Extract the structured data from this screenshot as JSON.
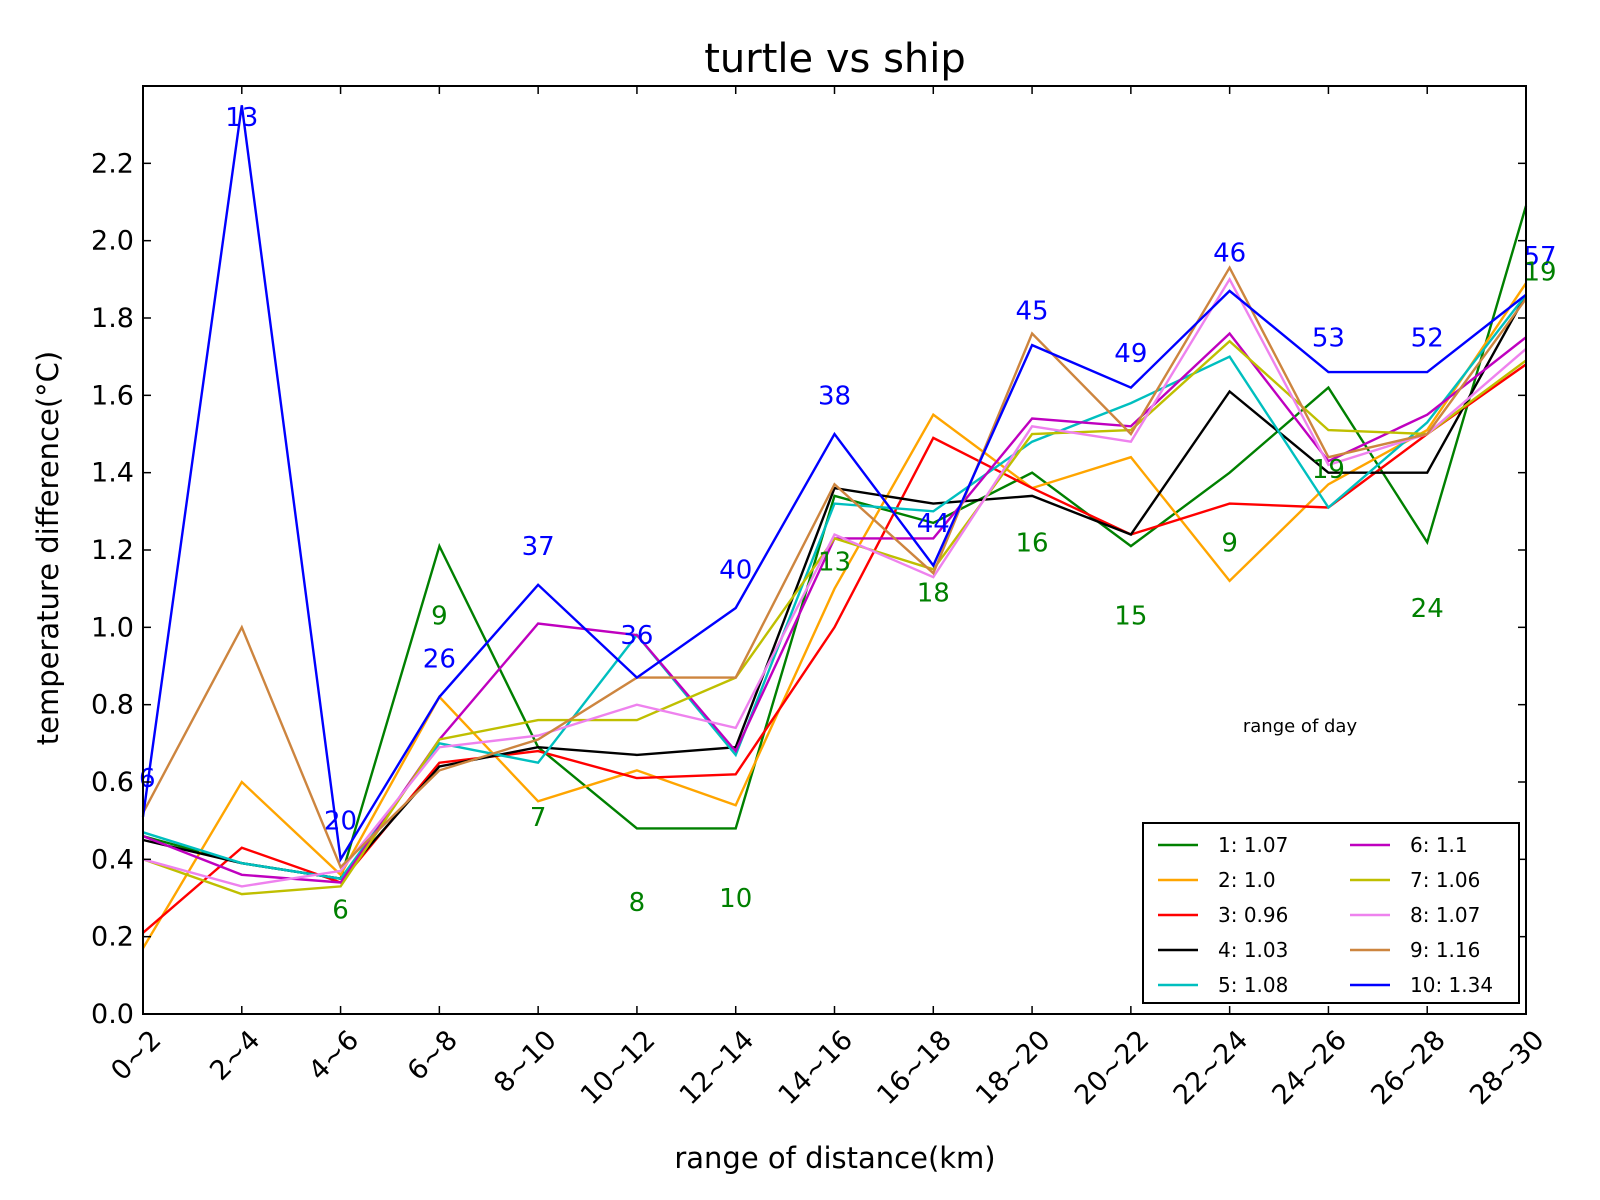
{
  "chart_data": {
    "type": "line",
    "title": "turtle vs ship",
    "xlabel": "range of distance(km)",
    "ylabel": "temperature difference(°C)",
    "categories": [
      "0~2",
      "2~4",
      "4~6",
      "6~8",
      "8~10",
      "10~12",
      "12~14",
      "14~16",
      "16~18",
      "18~20",
      "20~22",
      "22~24",
      "24~26",
      "26~28",
      "28~30"
    ],
    "ylim": [
      0,
      2.4
    ],
    "yticks": [
      0.0,
      0.2,
      0.4,
      0.6,
      0.8,
      1.0,
      1.2,
      1.4,
      1.6,
      1.8,
      2.0,
      2.2
    ],
    "ytick_labels": [
      "0.0",
      "0.2",
      "0.4",
      "0.6",
      "0.8",
      "1.0",
      "1.2",
      "1.4",
      "1.6",
      "1.8",
      "2.0",
      "2.2"
    ],
    "grid": false,
    "legend": {
      "title": "range of day",
      "title_position": "middle-right",
      "position": "lower-right",
      "columns": 2
    },
    "series": [
      {
        "name": "1: 1.07",
        "color": "#008000",
        "values": [
          0.46,
          0.39,
          0.35,
          1.21,
          0.69,
          0.48,
          0.48,
          1.34,
          1.27,
          1.4,
          1.21,
          1.4,
          1.62,
          1.22,
          2.09
        ]
      },
      {
        "name": "2: 1.0",
        "color": "#FFA500",
        "values": [
          0.17,
          0.6,
          0.36,
          0.82,
          0.55,
          0.63,
          0.54,
          1.1,
          1.55,
          1.36,
          1.44,
          1.12,
          1.37,
          1.51,
          1.89
        ]
      },
      {
        "name": "3: 0.96",
        "color": "#FF0000",
        "values": [
          0.21,
          0.43,
          0.34,
          0.65,
          0.68,
          0.61,
          0.62,
          1.0,
          1.49,
          1.36,
          1.24,
          1.32,
          1.31,
          1.5,
          1.68
        ]
      },
      {
        "name": "4: 1.03",
        "color": "#000000",
        "values": [
          0.45,
          0.39,
          0.35,
          0.64,
          0.69,
          0.67,
          0.69,
          1.36,
          1.32,
          1.34,
          1.24,
          1.61,
          1.4,
          1.4,
          1.86
        ]
      },
      {
        "name": "5: 1.08",
        "color": "#00BFBF",
        "values": [
          0.47,
          0.39,
          0.35,
          0.7,
          0.65,
          0.98,
          0.67,
          1.32,
          1.3,
          1.48,
          1.58,
          1.7,
          1.31,
          1.53,
          1.86
        ]
      },
      {
        "name": "6: 1.1",
        "color": "#BF00BF",
        "values": [
          0.46,
          0.36,
          0.34,
          0.71,
          1.01,
          0.98,
          0.68,
          1.23,
          1.23,
          1.54,
          1.52,
          1.76,
          1.43,
          1.55,
          1.75
        ]
      },
      {
        "name": "7: 1.06",
        "color": "#BFBF00",
        "values": [
          0.4,
          0.31,
          0.33,
          0.71,
          0.76,
          0.76,
          0.87,
          1.23,
          1.15,
          1.5,
          1.51,
          1.74,
          1.51,
          1.5,
          1.69
        ]
      },
      {
        "name": "8: 1.07",
        "color": "#EE82EE",
        "values": [
          0.4,
          0.33,
          0.37,
          0.69,
          0.72,
          0.8,
          0.74,
          1.24,
          1.13,
          1.52,
          1.48,
          1.9,
          1.42,
          1.5,
          1.72
        ]
      },
      {
        "name": "9: 1.16",
        "color": "#CD853F",
        "values": [
          0.52,
          1.0,
          0.38,
          0.63,
          0.71,
          0.87,
          0.87,
          1.37,
          1.14,
          1.76,
          1.5,
          1.93,
          1.44,
          1.5,
          1.85
        ]
      },
      {
        "name": "10: 1.34",
        "color": "#0000FF",
        "values": [
          0.51,
          2.35,
          0.4,
          0.82,
          1.11,
          0.87,
          1.05,
          1.5,
          1.16,
          1.73,
          1.62,
          1.87,
          1.66,
          1.66,
          1.86
        ]
      }
    ],
    "annotations": [
      {
        "text": "6",
        "x": "0~2",
        "y": 0.61,
        "color": "#0000FF"
      },
      {
        "text": "13",
        "x": "2~4",
        "y": 2.32,
        "color": "#0000FF"
      },
      {
        "text": "20",
        "x": "4~6",
        "y": 0.5,
        "color": "#0000FF"
      },
      {
        "text": "6",
        "x": "4~6",
        "y": 0.27,
        "color": "#008000"
      },
      {
        "text": "9",
        "x": "6~8",
        "y": 1.03,
        "color": "#008000"
      },
      {
        "text": "26",
        "x": "6~8",
        "y": 0.92,
        "color": "#0000FF"
      },
      {
        "text": "37",
        "x": "8~10",
        "y": 1.21,
        "color": "#0000FF"
      },
      {
        "text": "7",
        "x": "8~10",
        "y": 0.51,
        "color": "#008000"
      },
      {
        "text": "36",
        "x": "10~12",
        "y": 0.98,
        "color": "#0000FF"
      },
      {
        "text": "8",
        "x": "10~12",
        "y": 0.29,
        "color": "#008000"
      },
      {
        "text": "40",
        "x": "12~14",
        "y": 1.15,
        "color": "#0000FF"
      },
      {
        "text": "10",
        "x": "12~14",
        "y": 0.3,
        "color": "#008000"
      },
      {
        "text": "38",
        "x": "14~16",
        "y": 1.6,
        "color": "#0000FF"
      },
      {
        "text": "13",
        "x": "14~16",
        "y": 1.17,
        "color": "#008000"
      },
      {
        "text": "44",
        "x": "16~18",
        "y": 1.27,
        "color": "#0000FF"
      },
      {
        "text": "18",
        "x": "16~18",
        "y": 1.09,
        "color": "#008000"
      },
      {
        "text": "45",
        "x": "18~20",
        "y": 1.82,
        "color": "#0000FF"
      },
      {
        "text": "16",
        "x": "18~20",
        "y": 1.22,
        "color": "#008000"
      },
      {
        "text": "49",
        "x": "20~22",
        "y": 1.71,
        "color": "#0000FF"
      },
      {
        "text": "15",
        "x": "20~22",
        "y": 1.03,
        "color": "#008000"
      },
      {
        "text": "46",
        "x": "22~24",
        "y": 1.97,
        "color": "#0000FF"
      },
      {
        "text": "9",
        "x": "22~24",
        "y": 1.22,
        "color": "#008000"
      },
      {
        "text": "53",
        "x": "24~26",
        "y": 1.75,
        "color": "#0000FF"
      },
      {
        "text": "19",
        "x": "24~26",
        "y": 1.41,
        "color": "#008000"
      },
      {
        "text": "52",
        "x": "26~28",
        "y": 1.75,
        "color": "#0000FF"
      },
      {
        "text": "24",
        "x": "26~28",
        "y": 1.05,
        "color": "#008000"
      },
      {
        "text": "57",
        "x": "28~30",
        "y": 1.96,
        "color": "#0000FF"
      },
      {
        "text": "19",
        "x": "28~30",
        "y": 1.92,
        "color": "#008000"
      }
    ]
  }
}
